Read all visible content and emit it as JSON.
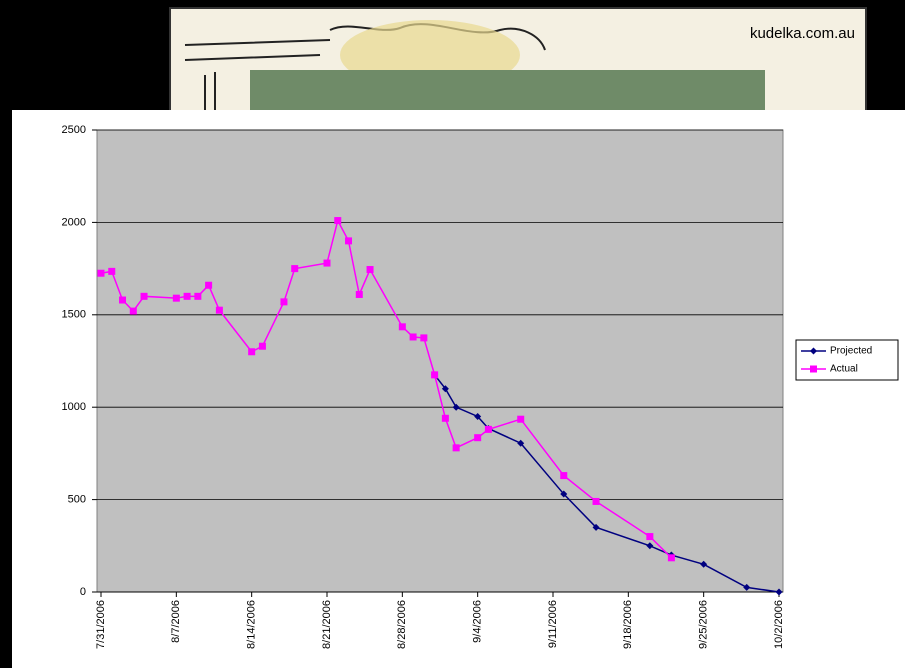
{
  "banner": {
    "credit": "kudelka.com.au"
  },
  "chart_data": {
    "type": "line",
    "xlim": [
      "7/31/2006",
      "10/2/2006"
    ],
    "xticks": [
      "7/31/2006",
      "8/7/2006",
      "8/14/2006",
      "8/21/2006",
      "8/28/2006",
      "9/4/2006",
      "9/11/2006",
      "9/18/2006",
      "9/25/2006",
      "10/2/2006"
    ],
    "ylim": [
      0,
      2500
    ],
    "yticks": [
      0,
      500,
      1000,
      1500,
      2000,
      2500
    ],
    "grid": true,
    "legend": "right",
    "series": [
      {
        "name": "Projected",
        "color": "#000080",
        "marker": "diamond",
        "x": [
          "8/31/2006",
          "9/1/2006",
          "9/2/2006",
          "9/4/2006",
          "9/5/2006",
          "9/8/2006",
          "9/12/2006",
          "9/15/2006",
          "9/20/2006",
          "9/22/2006",
          "9/25/2006",
          "9/29/2006",
          "10/2/2006"
        ],
        "values": [
          1175,
          1100,
          1000,
          950,
          885,
          805,
          530,
          350,
          250,
          200,
          150,
          25,
          0
        ]
      },
      {
        "name": "Actual",
        "color": "#ff00ff",
        "marker": "square",
        "x": [
          "7/31/2006",
          "8/1/2006",
          "8/2/2006",
          "8/3/2006",
          "8/4/2006",
          "8/7/2006",
          "8/8/2006",
          "8/9/2006",
          "8/10/2006",
          "8/11/2006",
          "8/14/2006",
          "8/15/2006",
          "8/17/2006",
          "8/18/2006",
          "8/21/2006",
          "8/22/2006",
          "8/23/2006",
          "8/24/2006",
          "8/25/2006",
          "8/28/2006",
          "8/29/2006",
          "8/30/2006",
          "8/31/2006",
          "9/1/2006",
          "9/2/2006",
          "9/4/2006",
          "9/5/2006",
          "9/8/2006",
          "9/12/2006",
          "9/15/2006",
          "9/20/2006",
          "9/22/2006"
        ],
        "values": [
          1725,
          1735,
          1580,
          1520,
          1600,
          1590,
          1600,
          1600,
          1660,
          1525,
          1300,
          1330,
          1570,
          1750,
          1780,
          2010,
          1900,
          1610,
          1745,
          1435,
          1380,
          1375,
          1175,
          940,
          780,
          835,
          880,
          935,
          630,
          490,
          300,
          185
        ]
      }
    ]
  }
}
